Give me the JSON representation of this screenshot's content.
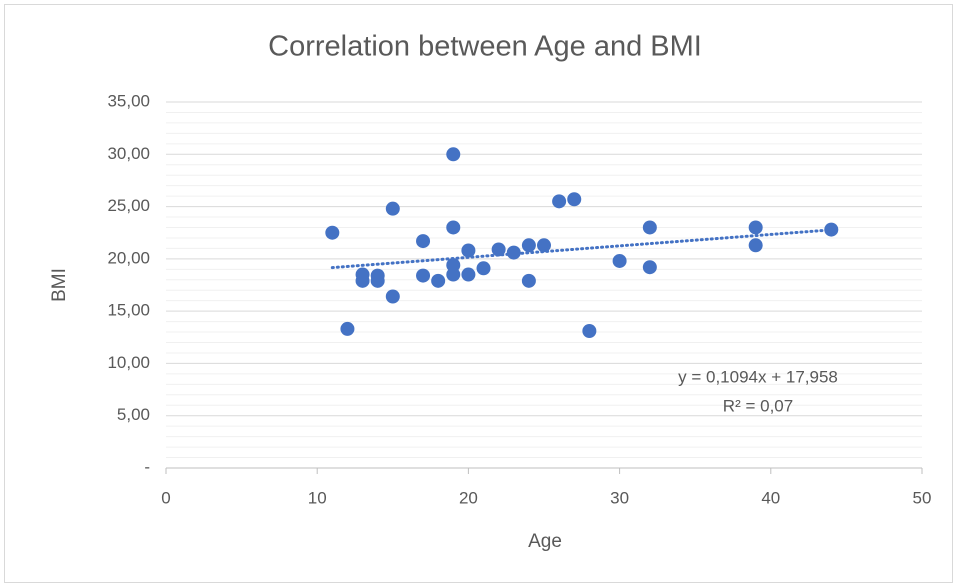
{
  "chart_data": {
    "type": "scatter",
    "title": "Correlation between Age and BMI",
    "x_label": "Age",
    "y_label": "BMI",
    "series": [
      {
        "name": "BMI",
        "color": "#4472c4",
        "x": [
          11,
          12,
          13,
          13,
          14,
          14,
          15,
          15,
          17,
          17,
          18,
          19,
          19,
          19,
          19,
          20,
          20,
          21,
          22,
          23,
          24,
          24,
          25,
          26,
          27,
          28,
          30,
          32,
          32,
          39,
          39,
          44
        ],
        "values": [
          22.5,
          13.3,
          18.5,
          17.9,
          18.4,
          17.9,
          24.8,
          16.4,
          21.7,
          18.4,
          17.9,
          30.0,
          23.0,
          19.4,
          18.5,
          20.8,
          18.5,
          19.1,
          20.9,
          20.6,
          21.3,
          17.9,
          21.3,
          25.5,
          25.7,
          13.1,
          19.8,
          23.0,
          19.2,
          23.0,
          21.3,
          22.8
        ]
      }
    ],
    "trendline": {
      "equation": "y = 0,1094x + 17,958",
      "r_squared": "R² = 0,07",
      "slope": 0.1094,
      "intercept": 17.958,
      "color": "#4472c4"
    },
    "xlim": [
      0,
      50
    ],
    "xticks": [
      0,
      10,
      20,
      30,
      40,
      50
    ],
    "ylim": [
      0,
      35
    ],
    "yticks": [
      {
        "value": 0,
        "label": "-"
      },
      {
        "value": 5,
        "label": "5,00"
      },
      {
        "value": 10,
        "label": "10,00"
      },
      {
        "value": 15,
        "label": "15,00"
      },
      {
        "value": 20,
        "label": "20,00"
      },
      {
        "value": 25,
        "label": "25,00"
      },
      {
        "value": 30,
        "label": "30,00"
      },
      {
        "value": 35,
        "label": "35,00"
      }
    ],
    "grid": true,
    "minor_grid": true
  }
}
